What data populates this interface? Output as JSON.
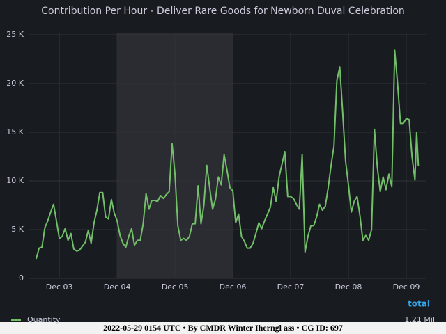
{
  "chart_data": {
    "type": "line",
    "title": "Contribution Per Hour - Deliver Rare Goods for Newborn Duval Celebration",
    "x": [
      2.6,
      2.65,
      2.7,
      2.75,
      2.8,
      2.85,
      2.9,
      2.95,
      3.0,
      3.05,
      3.1,
      3.15,
      3.2,
      3.25,
      3.3,
      3.35,
      3.4,
      3.45,
      3.5,
      3.55,
      3.6,
      3.65,
      3.7,
      3.75,
      3.8,
      3.85,
      3.9,
      3.95,
      4.0,
      4.05,
      4.1,
      4.15,
      4.2,
      4.25,
      4.3,
      4.35,
      4.4,
      4.45,
      4.5,
      4.55,
      4.6,
      4.65,
      4.7,
      4.75,
      4.8,
      4.85,
      4.9,
      4.95,
      5.0,
      5.05,
      5.1,
      5.15,
      5.2,
      5.25,
      5.3,
      5.35,
      5.4,
      5.45,
      5.5,
      5.55,
      5.6,
      5.65,
      5.7,
      5.75,
      5.8,
      5.85,
      5.9,
      5.95,
      6.0,
      6.05,
      6.1,
      6.15,
      6.2,
      6.25,
      6.3,
      6.35,
      6.4,
      6.45,
      6.5,
      6.55,
      6.6,
      6.65,
      6.7,
      6.75,
      6.8,
      6.85,
      6.9,
      6.95,
      7.0,
      7.05,
      7.1,
      7.15,
      7.2,
      7.25,
      7.3,
      7.35,
      7.4,
      7.45,
      7.5,
      7.55,
      7.6,
      7.65,
      7.7,
      7.75,
      7.8,
      7.85,
      7.9,
      7.95,
      8.0,
      8.05,
      8.1,
      8.15,
      8.2,
      8.25,
      8.3,
      8.35,
      8.4,
      8.45,
      8.5,
      8.55,
      8.6,
      8.65,
      8.7,
      8.75,
      8.8,
      8.85,
      8.9,
      8.95,
      9.0,
      9.05,
      9.1,
      9.15,
      9.18,
      9.21
    ],
    "series": [
      {
        "name": "Quantity",
        "color": "#73bf69",
        "total_label": "1.21 Mil",
        "values": [
          2000,
          3100,
          3200,
          5200,
          5900,
          6800,
          7600,
          5900,
          4100,
          4300,
          5100,
          3900,
          4600,
          3000,
          2800,
          2900,
          3300,
          3700,
          4900,
          3600,
          5700,
          7000,
          8800,
          8800,
          6300,
          6100,
          8100,
          6700,
          5900,
          4400,
          3600,
          3200,
          4300,
          5100,
          3400,
          3900,
          3900,
          5600,
          8700,
          7100,
          8000,
          8000,
          7900,
          8500,
          8200,
          8600,
          8900,
          13800,
          10700,
          5400,
          3900,
          4100,
          3900,
          4300,
          5600,
          5600,
          9500,
          5600,
          7500,
          11600,
          9300,
          7100,
          8100,
          10400,
          9600,
          12700,
          11100,
          9300,
          9000,
          5700,
          6600,
          4300,
          3800,
          3100,
          3100,
          3600,
          4600,
          5700,
          5100,
          5900,
          6600,
          7300,
          9300,
          7900,
          10400,
          11700,
          13000,
          8400,
          8400,
          8200,
          7600,
          7100,
          12700,
          2700,
          4300,
          5400,
          5400,
          6300,
          7600,
          7000,
          7400,
          9300,
          11600,
          13600,
          20300,
          21700,
          17100,
          12100,
          9600,
          6800,
          7900,
          8400,
          6400,
          3900,
          4400,
          3900,
          5000,
          15300,
          11400,
          8900,
          10400,
          9100,
          10700,
          9400,
          23400,
          20000,
          15900,
          15900,
          16400,
          16300,
          12500,
          10100,
          15000,
          11500
        ]
      }
    ],
    "legend_header": "total",
    "xlim": [
      2.48,
      9.35
    ],
    "xticks": [
      {
        "value": 3,
        "label": "Dec 03"
      },
      {
        "value": 4,
        "label": "Dec 04"
      },
      {
        "value": 5,
        "label": "Dec 05"
      },
      {
        "value": 6,
        "label": "Dec 06"
      },
      {
        "value": 7,
        "label": "Dec 07"
      },
      {
        "value": 8,
        "label": "Dec 08"
      },
      {
        "value": 9,
        "label": "Dec 09"
      }
    ],
    "ylim": [
      0,
      25000
    ],
    "yticks": [
      0,
      {
        "value": 5000,
        "label": "5 K"
      },
      {
        "value": 10000,
        "label": "10 K"
      },
      {
        "value": 15000,
        "label": "15 K"
      },
      {
        "value": 20000,
        "label": "20 K"
      },
      {
        "value": 25000,
        "label": "25 K"
      }
    ],
    "shaded_region": [
      4,
      6
    ],
    "grid": true
  },
  "footer": "2022-05-29 0154 UTC • By CMDR Winter Iherngl ass • CG ID: 697"
}
